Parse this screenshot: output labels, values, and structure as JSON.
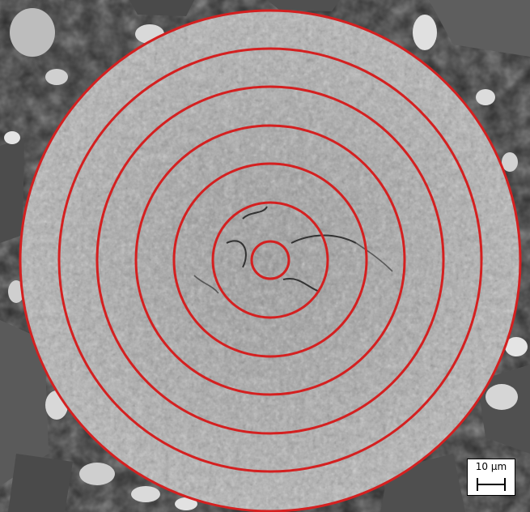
{
  "micrograph": {
    "description_icon": "sem-particle-cross-section",
    "ring_color": "#d42020",
    "ring_count": 7
  },
  "scale_bar": {
    "label": "10 µm"
  }
}
